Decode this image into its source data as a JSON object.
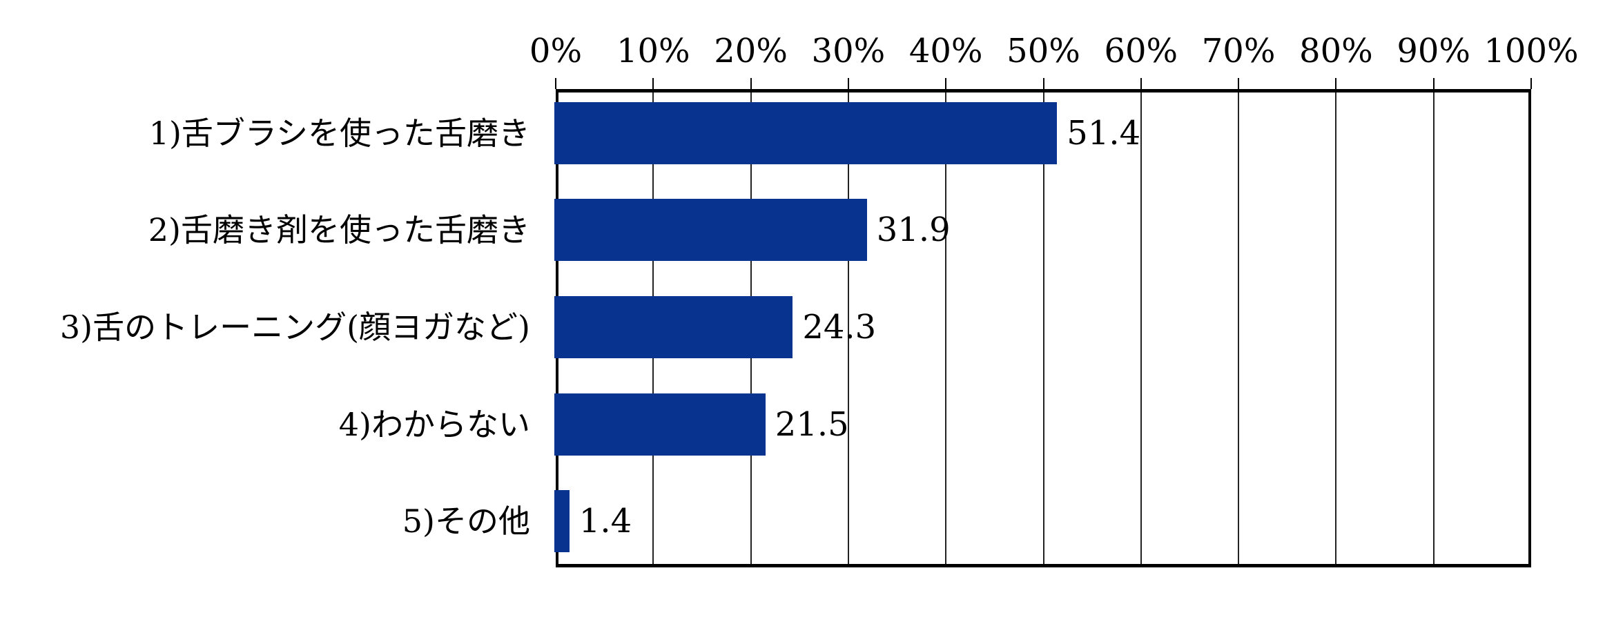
{
  "chart_data": {
    "type": "bar",
    "orientation": "horizontal",
    "title": "",
    "xlabel": "",
    "ylabel": "",
    "xlim": [
      0,
      100
    ],
    "x_ticks": [
      "0%",
      "10%",
      "20%",
      "30%",
      "40%",
      "50%",
      "60%",
      "70%",
      "80%",
      "90%",
      "100%"
    ],
    "x_axis_position": "top",
    "grid": true,
    "legend": null,
    "categories": [
      "1)舌ブラシを使った舌磨き",
      "2)舌磨き剤を使った舌磨き",
      "3)舌のトレーニング(顔ヨガなど)",
      "4)わからない",
      "5)その他"
    ],
    "values": [
      51.4,
      31.9,
      24.3,
      21.5,
      1.4
    ],
    "value_labels": [
      "51.4",
      "31.9",
      "24.3",
      "21.5",
      "1.4"
    ],
    "bar_color": "#08338E"
  }
}
